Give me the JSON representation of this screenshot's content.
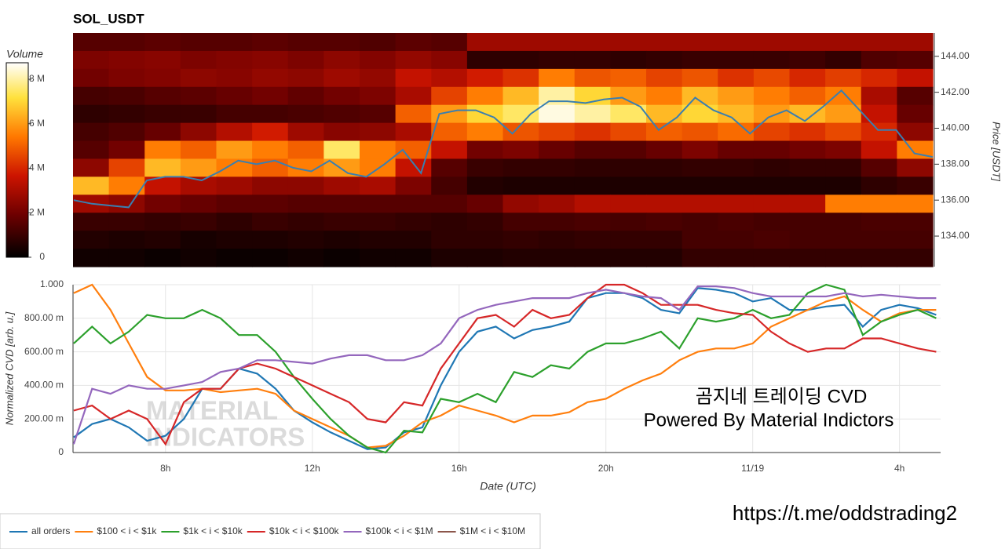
{
  "chart_data": [
    {
      "type": "heatmap",
      "title": "SOL_USDT",
      "colorbar_title": "Volume",
      "y_label": "Price [USDT]",
      "xlim": [
        5.48,
        29.0
      ],
      "ylim": [
        132.3,
        145.3
      ],
      "yticks": [
        {
          "value": 134,
          "label": "134.00"
        },
        {
          "value": 136,
          "label": "136.00"
        },
        {
          "value": 138,
          "label": "138.00"
        },
        {
          "value": 140,
          "label": "140.00"
        },
        {
          "value": 142,
          "label": "142.00"
        },
        {
          "value": 144,
          "label": "144.00"
        }
      ],
      "clim": [
        0,
        8.74
      ],
      "cticks": [
        0,
        {
          "value": 2,
          "label": "2 M"
        },
        {
          "value": 4,
          "label": "4 M"
        },
        {
          "value": 6,
          "label": "6 M"
        },
        {
          "value": 8,
          "label": "8 M"
        }
      ],
      "z": [
        [
          1.5,
          1.5,
          1.6,
          1.5,
          1.5,
          1.6,
          1.5,
          1.5,
          1.4,
          1.6,
          1.5,
          2.8,
          2.8,
          2.8,
          2.8,
          2.8,
          2.8,
          2.8,
          2.8,
          2.8,
          2.8,
          2.8,
          2.8,
          2.8
        ],
        [
          2.2,
          2.3,
          2.4,
          2.2,
          2.3,
          2.4,
          2.2,
          2.5,
          2.3,
          2.6,
          2.4,
          0.8,
          0.8,
          0.9,
          0.9,
          0.8,
          0.9,
          1.0,
          1.0,
          1.0,
          1.1,
          0.9,
          1.4,
          1.5
        ],
        [
          2.0,
          2.2,
          2.3,
          2.5,
          2.4,
          2.6,
          2.5,
          2.8,
          2.6,
          3.5,
          3.2,
          3.8,
          4.2,
          5.5,
          4.8,
          5.0,
          4.5,
          4.8,
          4.2,
          4.6,
          4.0,
          4.4,
          4.0,
          3.5
        ],
        [
          1.2,
          1.3,
          1.5,
          1.6,
          1.8,
          2.0,
          1.7,
          2.0,
          2.2,
          3.0,
          4.5,
          5.5,
          6.5,
          8.0,
          7.0,
          6.0,
          5.5,
          6.5,
          6.0,
          5.5,
          5.0,
          5.5,
          3.0,
          1.5
        ],
        [
          0.8,
          0.9,
          1.0,
          1.0,
          1.2,
          1.2,
          1.3,
          1.4,
          1.5,
          5.0,
          6.0,
          7.0,
          7.5,
          8.5,
          8.0,
          7.5,
          6.5,
          7.0,
          6.5,
          6.0,
          6.5,
          6.0,
          3.5,
          1.8
        ],
        [
          1.2,
          1.4,
          1.8,
          2.5,
          3.2,
          3.8,
          2.8,
          2.4,
          2.5,
          3.0,
          5.0,
          5.5,
          4.8,
          4.5,
          4.2,
          4.6,
          5.0,
          4.8,
          5.2,
          4.5,
          4.2,
          4.6,
          4.0,
          2.5
        ],
        [
          1.5,
          2.0,
          5.5,
          5.0,
          6.0,
          5.5,
          5.0,
          7.5,
          5.5,
          5.0,
          3.5,
          2.0,
          2.2,
          1.8,
          1.5,
          1.5,
          1.8,
          2.2,
          1.8,
          1.8,
          2.0,
          2.2,
          3.5,
          5.5
        ],
        [
          2.5,
          4.5,
          6.5,
          6.0,
          5.5,
          5.0,
          5.5,
          6.0,
          5.5,
          3.5,
          1.5,
          1.0,
          0.9,
          0.9,
          0.8,
          0.8,
          0.8,
          0.9,
          0.9,
          0.8,
          0.9,
          0.9,
          1.5,
          2.5
        ],
        [
          6.5,
          5.5,
          3.5,
          3.0,
          2.8,
          2.5,
          2.5,
          2.8,
          3.0,
          2.2,
          1.2,
          0.6,
          0.5,
          0.5,
          0.5,
          0.5,
          0.5,
          0.5,
          0.5,
          0.5,
          0.5,
          0.5,
          0.8,
          1.0
        ],
        [
          2.8,
          2.5,
          2.0,
          1.8,
          1.6,
          1.6,
          1.5,
          1.5,
          1.5,
          1.5,
          1.5,
          1.8,
          2.6,
          2.8,
          3.2,
          3.2,
          3.2,
          3.2,
          3.2,
          3.2,
          3.2,
          5.5,
          5.5,
          5.5
        ],
        [
          1.0,
          1.0,
          0.9,
          1.0,
          0.8,
          1.0,
          0.9,
          1.0,
          1.0,
          0.9,
          0.8,
          0.9,
          1.2,
          1.2,
          1.3,
          1.2,
          1.3,
          1.2,
          1.3,
          1.2,
          1.2,
          1.2,
          1.3,
          1.3
        ],
        [
          0.6,
          0.5,
          0.6,
          0.4,
          0.5,
          0.5,
          0.6,
          0.5,
          0.6,
          0.6,
          0.8,
          0.8,
          0.9,
          0.8,
          0.9,
          0.9,
          0.9,
          1.2,
          1.2,
          1.3,
          1.2,
          1.2,
          1.2,
          1.2
        ],
        [
          0.3,
          0.3,
          0.2,
          0.3,
          0.2,
          0.2,
          0.3,
          0.2,
          0.3,
          0.3,
          0.5,
          0.5,
          0.6,
          0.6,
          0.6,
          0.6,
          0.6,
          0.9,
          0.9,
          0.9,
          0.9,
          0.9,
          0.9,
          0.9
        ]
      ],
      "price": {
        "color": "#3a7fb0",
        "x": [
          5.5,
          6,
          6.5,
          7,
          7.5,
          8,
          8.5,
          9,
          9.5,
          10,
          10.5,
          11,
          11.5,
          12,
          12.5,
          13,
          13.5,
          14,
          14.5,
          15,
          15.5,
          16,
          16.5,
          17,
          17.5,
          18,
          18.5,
          19,
          19.5,
          20,
          20.5,
          21,
          21.5,
          22,
          22.5,
          23,
          23.5,
          24,
          24.5,
          25,
          25.5,
          26,
          26.5,
          27,
          27.5,
          28,
          28.5,
          29
        ],
        "values": [
          136.0,
          135.8,
          135.7,
          135.6,
          137.1,
          137.3,
          137.3,
          137.1,
          137.6,
          138.2,
          138.0,
          138.2,
          137.8,
          137.6,
          138.2,
          137.5,
          137.3,
          138.0,
          138.8,
          137.5,
          140.8,
          141.0,
          141.0,
          140.6,
          139.7,
          140.8,
          141.5,
          141.5,
          141.4,
          141.6,
          141.7,
          141.2,
          139.9,
          140.6,
          141.7,
          141.0,
          140.6,
          139.7,
          140.6,
          141.0,
          140.4,
          141.2,
          142.1,
          141.0,
          139.9,
          139.9,
          138.6,
          138.4
        ]
      }
    },
    {
      "type": "line",
      "y_label": "Normalized CVD [arb. u.]",
      "x_label": "Date (UTC)",
      "xlim": [
        5.48,
        29.12
      ],
      "ylim": [
        0,
        1
      ],
      "xticks": [
        {
          "value": 8,
          "label": "8h"
        },
        {
          "value": 12,
          "label": "12h"
        },
        {
          "value": 16,
          "label": "16h"
        },
        {
          "value": 20,
          "label": "20h"
        },
        {
          "value": 24,
          "label": "11/19"
        },
        {
          "value": 28,
          "label": "4h"
        }
      ],
      "yticks": [
        0,
        {
          "value": 0.2,
          "label": "200.00 m"
        },
        {
          "value": 0.4,
          "label": "400.00 m"
        },
        {
          "value": 0.6,
          "label": "600.00 m"
        },
        {
          "value": 0.8,
          "label": "800.00 m"
        },
        {
          "value": 1,
          "label": "1.000"
        }
      ],
      "grid": true,
      "annotations": [
        "곰지네 트레이딩 CVD",
        "Powered By Material Indictors",
        "https://t.me/oddstrading2"
      ],
      "watermark": [
        "MATERIAL",
        "INDICATORS"
      ],
      "x": [
        5.5,
        6,
        6.5,
        7,
        7.5,
        8,
        8.5,
        9,
        9.5,
        10,
        10.5,
        11,
        11.5,
        12,
        12.5,
        13,
        13.5,
        14,
        14.5,
        15,
        15.5,
        16,
        16.5,
        17,
        17.5,
        18,
        18.5,
        19,
        19.5,
        20,
        20.5,
        21,
        21.5,
        22,
        22.5,
        23,
        23.5,
        24,
        24.5,
        25,
        25.5,
        26,
        26.5,
        27,
        27.5,
        28,
        28.5,
        29
      ],
      "series": [
        {
          "name": "all orders",
          "color": "#1f77b4",
          "values": [
            0.09,
            0.17,
            0.2,
            0.15,
            0.07,
            0.1,
            0.2,
            0.38,
            0.38,
            0.5,
            0.47,
            0.38,
            0.25,
            0.18,
            0.12,
            0.07,
            0.02,
            0.03,
            0.12,
            0.15,
            0.4,
            0.6,
            0.72,
            0.75,
            0.68,
            0.73,
            0.75,
            0.78,
            0.92,
            0.95,
            0.95,
            0.92,
            0.85,
            0.83,
            0.98,
            0.97,
            0.95,
            0.9,
            0.92,
            0.85,
            0.85,
            0.87,
            0.88,
            0.75,
            0.85,
            0.88,
            0.86,
            0.82
          ]
        },
        {
          "name": "$100 < i < $1k",
          "color": "#ff7f0e",
          "values": [
            0.95,
            1.0,
            0.85,
            0.65,
            0.45,
            0.37,
            0.37,
            0.38,
            0.36,
            0.37,
            0.38,
            0.35,
            0.25,
            0.2,
            0.15,
            0.1,
            0.03,
            0.04,
            0.1,
            0.18,
            0.22,
            0.28,
            0.25,
            0.22,
            0.18,
            0.22,
            0.22,
            0.24,
            0.3,
            0.32,
            0.38,
            0.43,
            0.47,
            0.55,
            0.6,
            0.62,
            0.62,
            0.65,
            0.75,
            0.8,
            0.85,
            0.9,
            0.93,
            0.85,
            0.78,
            0.83,
            0.85,
            0.85
          ]
        },
        {
          "name": "$1k < i < $10k",
          "color": "#2ca02c",
          "values": [
            0.65,
            0.75,
            0.65,
            0.72,
            0.82,
            0.8,
            0.8,
            0.85,
            0.8,
            0.7,
            0.7,
            0.6,
            0.45,
            0.32,
            0.2,
            0.1,
            0.03,
            0.0,
            0.13,
            0.12,
            0.32,
            0.3,
            0.35,
            0.3,
            0.48,
            0.45,
            0.52,
            0.5,
            0.6,
            0.65,
            0.65,
            0.68,
            0.72,
            0.62,
            0.8,
            0.78,
            0.8,
            0.85,
            0.8,
            0.82,
            0.95,
            1.0,
            0.97,
            0.7,
            0.78,
            0.82,
            0.85,
            0.8
          ]
        },
        {
          "name": "$10k < i < $100k",
          "color": "#d62728",
          "values": [
            0.25,
            0.28,
            0.2,
            0.25,
            0.2,
            0.05,
            0.3,
            0.38,
            0.38,
            0.5,
            0.53,
            0.5,
            0.45,
            0.4,
            0.35,
            0.3,
            0.2,
            0.18,
            0.3,
            0.28,
            0.5,
            0.65,
            0.8,
            0.82,
            0.75,
            0.85,
            0.8,
            0.82,
            0.92,
            1.0,
            1.0,
            0.95,
            0.88,
            0.88,
            0.88,
            0.85,
            0.83,
            0.82,
            0.72,
            0.65,
            0.6,
            0.62,
            0.62,
            0.68,
            0.68,
            0.65,
            0.62,
            0.6
          ]
        },
        {
          "name": "$100k < i < $1M",
          "color": "#9467bd",
          "values": [
            0.05,
            0.38,
            0.35,
            0.4,
            0.38,
            0.38,
            0.4,
            0.42,
            0.48,
            0.5,
            0.55,
            0.55,
            0.54,
            0.53,
            0.56,
            0.58,
            0.58,
            0.55,
            0.55,
            0.58,
            0.65,
            0.8,
            0.85,
            0.88,
            0.9,
            0.92,
            0.92,
            0.92,
            0.95,
            0.97,
            0.95,
            0.93,
            0.92,
            0.85,
            0.99,
            0.99,
            0.98,
            0.95,
            0.93,
            0.93,
            0.93,
            0.93,
            0.95,
            0.93,
            0.94,
            0.93,
            0.92,
            0.92
          ]
        },
        {
          "name": "$1M < i < $10M",
          "color": "#8c564b",
          "values": [
            null,
            null,
            null,
            null,
            null,
            null,
            null,
            null,
            null,
            null,
            null,
            null,
            null,
            null,
            null,
            null,
            null,
            null,
            null,
            null,
            null,
            null,
            null,
            null,
            null,
            null,
            null,
            null,
            null,
            null,
            null,
            null,
            null,
            null,
            null,
            null,
            null,
            null,
            null,
            null,
            null,
            null,
            null,
            null,
            null,
            null,
            null,
            null
          ]
        }
      ]
    }
  ]
}
